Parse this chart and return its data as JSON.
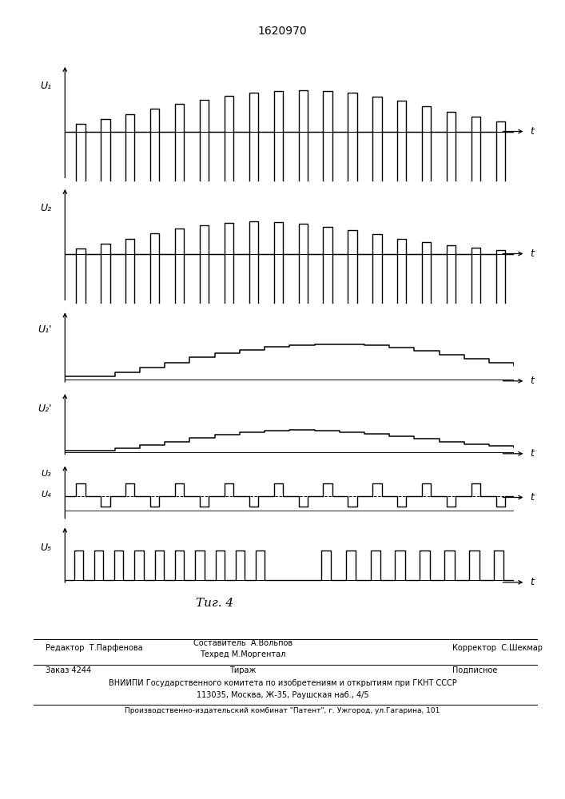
{
  "title": "1620970",
  "fig_caption": "Τиг. 4",
  "bg_color": "#ffffff",
  "line_color": "#000000",
  "panel_labels": [
    "U₁",
    "U₂",
    "U₁'",
    "U₂'",
    "U₃",
    "U₄",
    "U₅"
  ],
  "footer_line1_left": "Редактор  Т.Парфенова",
  "footer_line1_center1": "Составитель  А.Вольпов",
  "footer_line1_center2": "Техред М.Моргентал",
  "footer_line1_right": "Корректор  С.Шекмар",
  "footer_line2_left": "Заказ 4244",
  "footer_line2_center": "Тираж",
  "footer_line2_right": "Подписное",
  "footer_line3": "ВНИИПИ Государственного комитета по изобретениям и открытиям при ГКНТ СССР",
  "footer_line4": "113035, Москва, Ж-35, Раушская наб., 4/5",
  "footer_line5": "Производственно-издательский комбинат \"Патент\", г. Ужгород, ул.Гагарина, 101",
  "u1_env": [
    0.18,
    0.28,
    0.4,
    0.52,
    0.63,
    0.73,
    0.81,
    0.88,
    0.93,
    0.95,
    0.93,
    0.88,
    0.8,
    0.7,
    0.58,
    0.45,
    0.33,
    0.22
  ],
  "u2_env": [
    0.12,
    0.22,
    0.34,
    0.46,
    0.57,
    0.65,
    0.71,
    0.74,
    0.72,
    0.68,
    0.62,
    0.54,
    0.44,
    0.34,
    0.26,
    0.19,
    0.13,
    0.09
  ],
  "u1s_stairs": [
    0.08,
    0.16,
    0.26,
    0.37,
    0.48,
    0.57,
    0.65,
    0.71,
    0.75,
    0.77,
    0.77,
    0.74,
    0.69,
    0.62,
    0.54,
    0.45,
    0.37,
    0.3
  ],
  "u2s_stairs": [
    0.05,
    0.1,
    0.18,
    0.27,
    0.36,
    0.44,
    0.5,
    0.54,
    0.55,
    0.54,
    0.51,
    0.46,
    0.4,
    0.34,
    0.27,
    0.21,
    0.16,
    0.12
  ]
}
